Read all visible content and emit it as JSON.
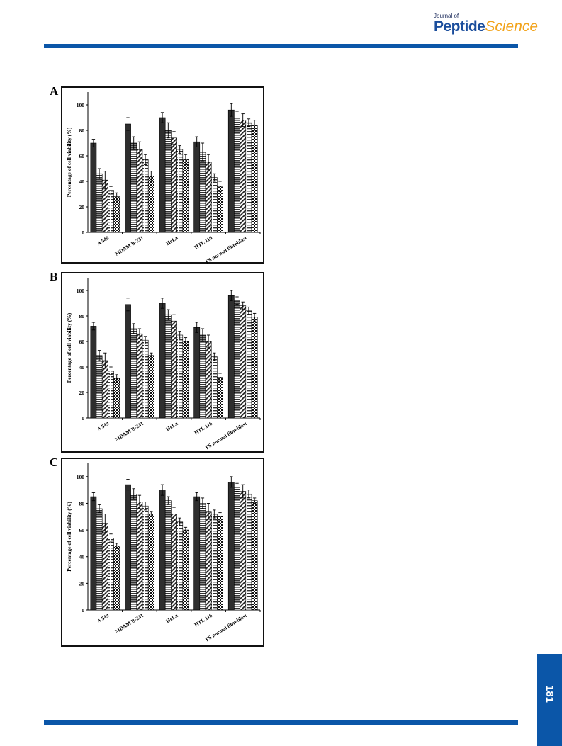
{
  "header": {
    "journal_small": "Journal of",
    "journal_peptide": "Peptide",
    "journal_science": "Science"
  },
  "page_number": "181",
  "colors": {
    "accent": "#0b56a8",
    "logo_orange": "#f2a31b"
  },
  "chart_data": [
    {
      "panel": "A",
      "type": "bar",
      "ylabel": "Percentage of cell viability (%)",
      "ylim": [
        0,
        110
      ],
      "yticks": [
        "0",
        "20",
        "40",
        "60",
        "80",
        "100"
      ],
      "categories": [
        "A 549",
        "MDAM B-231",
        "HeLa",
        "HTL 116",
        "FS normal fibroblast"
      ],
      "series": [
        {
          "values": [
            70,
            85,
            90,
            71,
            96
          ],
          "errors": [
            3,
            5,
            4,
            4,
            5
          ]
        },
        {
          "values": [
            46,
            70,
            80,
            63,
            89
          ],
          "errors": [
            4,
            5,
            6,
            7,
            6
          ]
        },
        {
          "values": [
            41,
            65,
            74,
            55,
            88
          ],
          "errors": [
            7,
            6,
            5,
            6,
            5
          ]
        },
        {
          "values": [
            33,
            57,
            65,
            43,
            86
          ],
          "errors": [
            3,
            4,
            3,
            3,
            3
          ]
        },
        {
          "values": [
            28,
            44,
            57,
            36,
            84
          ],
          "errors": [
            3,
            4,
            4,
            4,
            4
          ]
        }
      ]
    },
    {
      "panel": "B",
      "type": "bar",
      "ylabel": "Percentage of cell viability (%)",
      "ylim": [
        0,
        110
      ],
      "yticks": [
        "0",
        "20",
        "40",
        "60",
        "80",
        "100"
      ],
      "categories": [
        "A 549",
        "MDAM B-231",
        "HeLa",
        "HTL 116",
        "FS normal fibroblast"
      ],
      "series": [
        {
          "values": [
            72,
            89,
            90,
            71,
            96
          ],
          "errors": [
            3,
            5,
            4,
            4,
            4
          ]
        },
        {
          "values": [
            49,
            70,
            81,
            65,
            92
          ],
          "errors": [
            4,
            4,
            4,
            5,
            3
          ]
        },
        {
          "values": [
            45,
            66,
            76,
            60,
            88
          ],
          "errors": [
            6,
            4,
            5,
            5,
            3
          ]
        },
        {
          "values": [
            37,
            61,
            65,
            48,
            84
          ],
          "errors": [
            3,
            3,
            3,
            3,
            3
          ]
        },
        {
          "values": [
            31,
            49,
            60,
            32,
            79
          ],
          "errors": [
            3,
            2,
            3,
            3,
            3
          ]
        }
      ]
    },
    {
      "panel": "C",
      "type": "bar",
      "ylabel": "Percentage of cell viability (%)",
      "ylim": [
        0,
        110
      ],
      "yticks": [
        "0",
        "20",
        "40",
        "60",
        "80",
        "100"
      ],
      "categories": [
        "A 549",
        "MDAM B-231",
        "HeLa",
        "HTL 116",
        "FS normal fibroblast"
      ],
      "series": [
        {
          "values": [
            85,
            94,
            90,
            85,
            96
          ],
          "errors": [
            3,
            4,
            4,
            3,
            4
          ]
        },
        {
          "values": [
            76,
            87,
            82,
            80,
            92
          ],
          "errors": [
            3,
            4,
            3,
            4,
            3
          ]
        },
        {
          "values": [
            65,
            81,
            72,
            74,
            89
          ],
          "errors": [
            7,
            5,
            5,
            6,
            5
          ]
        },
        {
          "values": [
            54,
            78,
            66,
            72,
            87
          ],
          "errors": [
            3,
            3,
            3,
            3,
            3
          ]
        },
        {
          "values": [
            48,
            72,
            60,
            70,
            82
          ],
          "errors": [
            2,
            2,
            2,
            3,
            2
          ]
        }
      ]
    }
  ]
}
